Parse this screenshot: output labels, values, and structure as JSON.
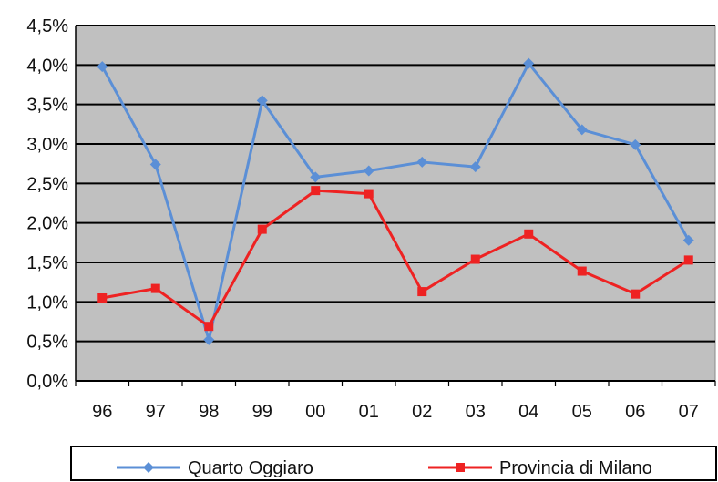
{
  "chart_data": {
    "type": "line",
    "title": "",
    "xlabel": "",
    "ylabel": "",
    "categories": [
      "96",
      "97",
      "98",
      "99",
      "00",
      "01",
      "02",
      "03",
      "04",
      "05",
      "06",
      "07"
    ],
    "series": [
      {
        "name": "Quarto Oggiaro",
        "color": "#5b8fd6",
        "marker": "diamond",
        "values": [
          3.98,
          2.74,
          0.52,
          3.55,
          2.58,
          2.66,
          2.77,
          2.71,
          4.02,
          3.18,
          2.99,
          1.78
        ]
      },
      {
        "name": "Provincia di Milano",
        "color": "#ee2222",
        "marker": "square",
        "values": [
          1.05,
          1.17,
          0.69,
          1.92,
          2.41,
          2.37,
          1.13,
          1.54,
          1.86,
          1.39,
          1.1,
          1.53
        ]
      }
    ],
    "ylim": [
      0,
      4.5
    ],
    "y_ticks": [
      "0,0%",
      "0,5%",
      "1,0%",
      "1,5%",
      "2,0%",
      "2,5%",
      "3,0%",
      "3,5%",
      "4,0%",
      "4,5%"
    ],
    "y_tick_values": [
      0,
      0.5,
      1.0,
      1.5,
      2.0,
      2.5,
      3.0,
      3.5,
      4.0,
      4.5
    ],
    "grid": true,
    "plot_background": "#c0c0c0",
    "gridline_color": "#000000",
    "legend_position": "bottom"
  }
}
